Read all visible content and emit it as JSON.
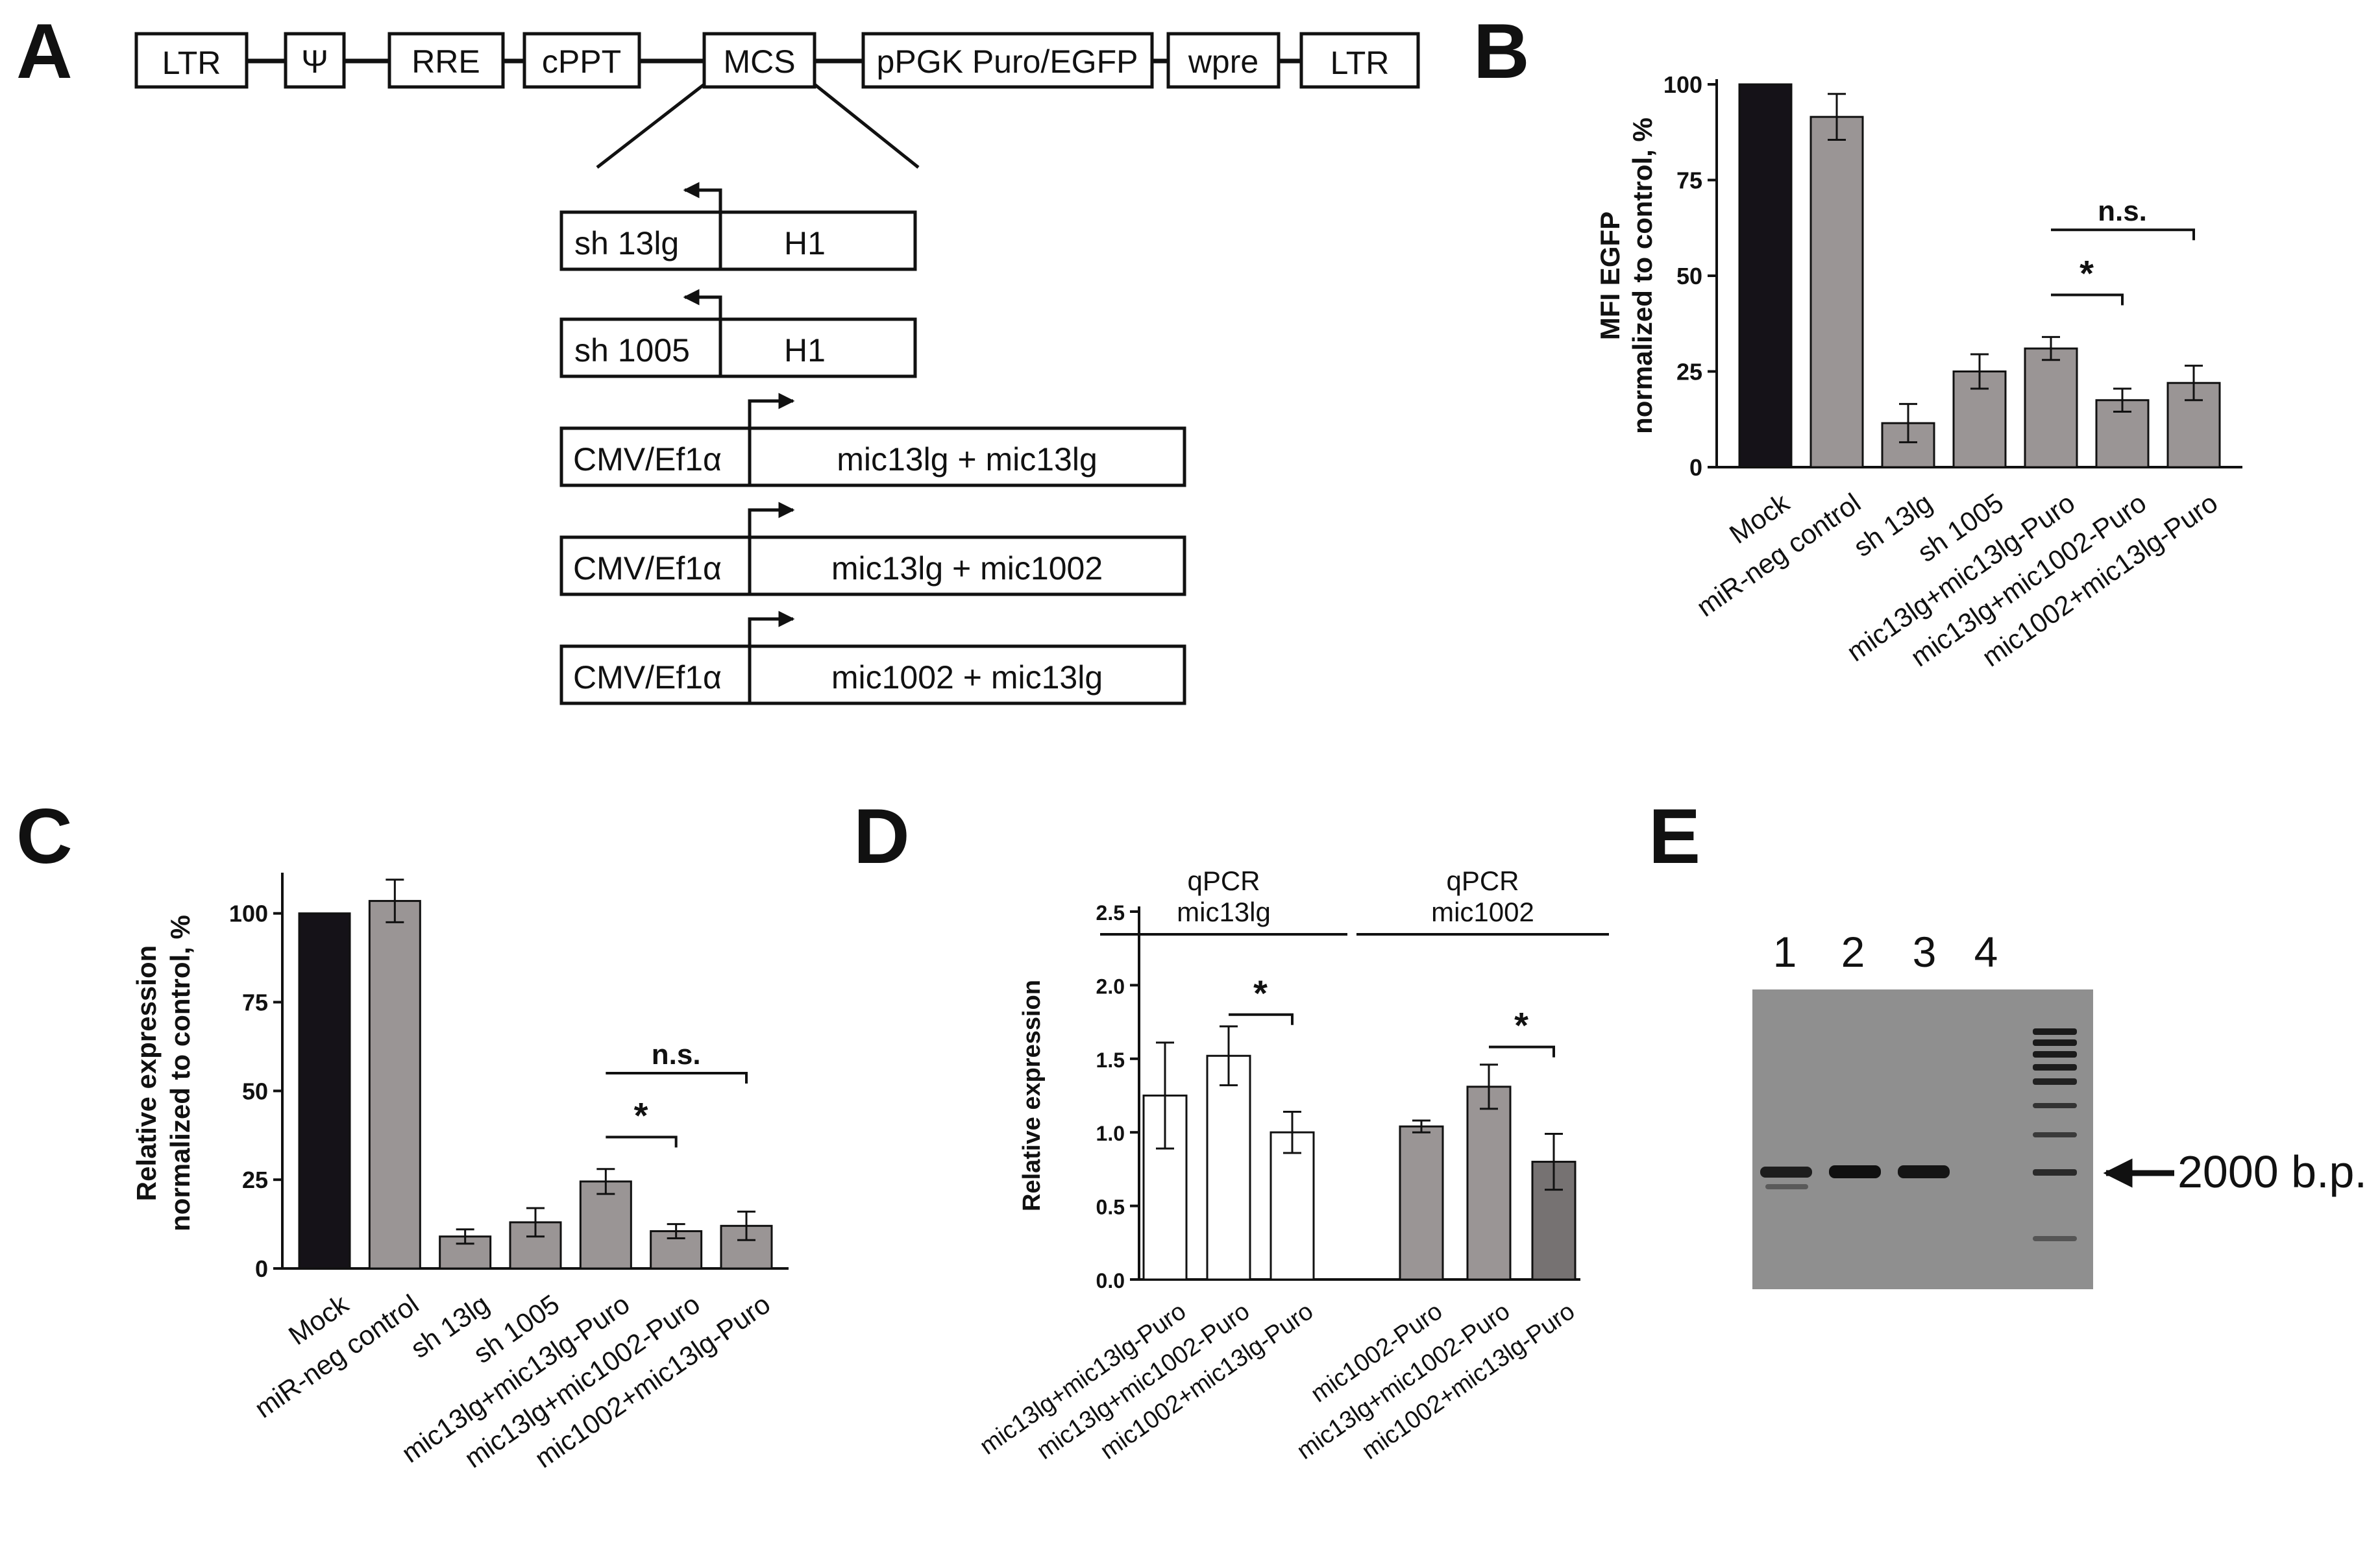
{
  "figure": {
    "panel_labels": [
      "A",
      "B",
      "C",
      "D",
      "E"
    ]
  },
  "panel_a": {
    "vector_elements": [
      "LTR",
      "Ψ",
      "RRE",
      "cPPT",
      "MCS",
      "pPGK Puro/EGFP",
      "wpre",
      "LTR"
    ],
    "inserts": [
      {
        "promoter": "sh 13lg",
        "body": "H1"
      },
      {
        "promoter": "sh 1005",
        "body": "H1"
      },
      {
        "promoter": "CMV/Ef1α",
        "body": "mic13lg + mic13lg"
      },
      {
        "promoter": "CMV/Ef1α",
        "body": "mic13lg + mic1002"
      },
      {
        "promoter": "CMV/Ef1α",
        "body": "mic1002 + mic13lg"
      }
    ]
  },
  "chart_data": [
    {
      "panel": "B",
      "type": "bar",
      "ylabel": [
        "MFI EGFP",
        "normalized to control, %"
      ],
      "ylim": [
        0,
        100
      ],
      "yticks": [
        "0",
        "25",
        "50",
        "75",
        "100"
      ],
      "categories": [
        "Mock",
        "miR-neg control",
        "sh 13lg",
        "sh 1005",
        "mic13lg+mic13lg-Puro",
        "mic13lg+mic1002-Puro",
        "mic1002+mic13lg-Puro"
      ],
      "values": [
        100,
        91.5,
        11.5,
        25,
        31,
        17.5,
        22
      ],
      "errors": [
        0,
        6,
        5,
        4.5,
        3,
        3,
        4.5
      ],
      "colors": [
        "#151218",
        "#9a9595",
        "#9a9595",
        "#9a9595",
        "#9a9595",
        "#9a9595",
        "#9a9595"
      ],
      "annotations": [
        {
          "from": 4,
          "to": 5,
          "label": "*",
          "level": 45
        },
        {
          "from": 4,
          "to": 6,
          "label": "n.s.",
          "level": 62
        }
      ]
    },
    {
      "panel": "C",
      "type": "bar",
      "ylabel": [
        "Relative expression",
        "normalized to control, %"
      ],
      "ylim": [
        0,
        110
      ],
      "yticks": [
        "0",
        "25",
        "50",
        "75",
        "100"
      ],
      "categories": [
        "Mock",
        "miR-neg control",
        "sh 13lg",
        "sh 1005",
        "mic13lg+mic13lg-Puro",
        "mic13lg+mic1002-Puro",
        "mic1002+mic13lg-Puro"
      ],
      "values": [
        100,
        103.5,
        9,
        13,
        24.5,
        10.5,
        12
      ],
      "errors": [
        0,
        6,
        2,
        4,
        3.5,
        2,
        4
      ],
      "colors": [
        "#151218",
        "#9a9595",
        "#9a9595",
        "#9a9595",
        "#9a9595",
        "#9a9595",
        "#9a9595"
      ],
      "annotations": [
        {
          "from": 4,
          "to": 5,
          "label": "*",
          "level": 37
        },
        {
          "from": 4,
          "to": 6,
          "label": "n.s.",
          "level": 55
        }
      ]
    },
    {
      "panel": "D",
      "type": "bar",
      "ylabel": [
        "Relative expression"
      ],
      "ylim": [
        0,
        2.5
      ],
      "yticks": [
        "0.0",
        "0.5",
        "1.0",
        "1.5",
        "2.0",
        "2.5"
      ],
      "categories": [
        "mic13lg+mic13lg-Puro",
        "mic13lg+mic1002-Puro",
        "mic1002+mic13lg-Puro",
        "mic1002-Puro",
        "mic13lg+mic1002-Puro",
        "mic1002+mic13lg-Puro"
      ],
      "values": [
        1.25,
        1.52,
        1.0,
        1.04,
        1.31,
        0.8
      ],
      "errors": [
        0.36,
        0.2,
        0.14,
        0.04,
        0.15,
        0.19
      ],
      "colors": [
        "#ffffff",
        "#ffffff",
        "#ffffff",
        "#9a9595",
        "#9a9595",
        "#767272"
      ],
      "groups": [
        {
          "label": [
            "qPCR",
            "mic13lg"
          ],
          "from": 0,
          "to": 2
        },
        {
          "label": [
            "qPCR",
            "mic1002"
          ],
          "from": 3,
          "to": 5
        }
      ],
      "annotations": [
        {
          "from": 1,
          "to": 2,
          "label": "*",
          "level": 1.8
        },
        {
          "from": 4,
          "to": 5,
          "label": "*",
          "level": 1.58
        }
      ]
    }
  ],
  "panel_e": {
    "lane_labels": [
      "1",
      "2",
      "3",
      "4"
    ],
    "marker_label": "2000 b.p."
  }
}
